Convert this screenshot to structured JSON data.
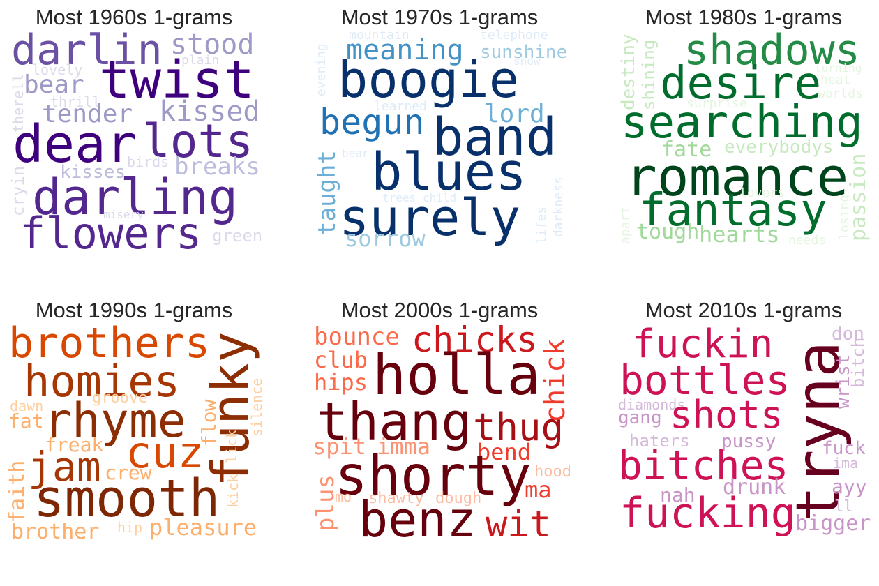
{
  "panels": [
    {
      "title": "Most 1960s 1-grams",
      "words": [
        {
          "text": "darlin",
          "color": "#6a51a3"
        },
        {
          "text": "stood",
          "color": "#9e9ac8"
        },
        {
          "text": "twist",
          "color": "#3f007d"
        },
        {
          "text": "lovely",
          "color": "#dadaeb"
        },
        {
          "text": "plain",
          "color": "#dadaeb"
        },
        {
          "text": "bear",
          "color": "#9e9ac8"
        },
        {
          "text": "thrill",
          "color": "#dadaeb"
        },
        {
          "text": "tender",
          "color": "#9e9ac8"
        },
        {
          "text": "kissed",
          "color": "#9e9ac8"
        },
        {
          "text": "therell",
          "color": "#dadaeb"
        },
        {
          "text": "dear",
          "color": "#3f007d"
        },
        {
          "text": "lots",
          "color": "#54278f"
        },
        {
          "text": "kisses",
          "color": "#bcbddc"
        },
        {
          "text": "birds",
          "color": "#dadaeb"
        },
        {
          "text": "breaks",
          "color": "#bcbddc"
        },
        {
          "text": "cryin",
          "color": "#dadaeb"
        },
        {
          "text": "darling",
          "color": "#54278f"
        },
        {
          "text": "misery",
          "color": "#dadaeb"
        },
        {
          "text": "flowers",
          "color": "#54278f"
        },
        {
          "text": "green",
          "color": "#dadaeb"
        }
      ]
    },
    {
      "title": "Most 1970s 1-grams",
      "words": [
        {
          "text": "mountain",
          "color": "#deebf7"
        },
        {
          "text": "telephone",
          "color": "#deebf7"
        },
        {
          "text": "meaning",
          "color": "#4292c6"
        },
        {
          "text": "sunshine",
          "color": "#9ecae1"
        },
        {
          "text": "snow",
          "color": "#deebf7"
        },
        {
          "text": "evening",
          "color": "#deebf7"
        },
        {
          "text": "boogie",
          "color": "#08306b"
        },
        {
          "text": "learned",
          "color": "#deebf7"
        },
        {
          "text": "begun",
          "color": "#2171b5"
        },
        {
          "text": "lord",
          "color": "#6baed6"
        },
        {
          "text": "band",
          "color": "#08306b"
        },
        {
          "text": "taught",
          "color": "#6baed6"
        },
        {
          "text": "bear",
          "color": "#deebf7"
        },
        {
          "text": "blues",
          "color": "#08306b"
        },
        {
          "text": "darkness",
          "color": "#deebf7"
        },
        {
          "text": "trees",
          "color": "#deebf7"
        },
        {
          "text": "child",
          "color": "#deebf7"
        },
        {
          "text": "lifes",
          "color": "#deebf7"
        },
        {
          "text": "surely",
          "color": "#08306b"
        },
        {
          "text": "sorrow",
          "color": "#9ecae1"
        }
      ]
    },
    {
      "title": "Most 1980s 1-grams",
      "words": [
        {
          "text": "destiny",
          "color": "#c7e9c0"
        },
        {
          "text": "shining",
          "color": "#c7e9c0"
        },
        {
          "text": "shadows",
          "color": "#238b45"
        },
        {
          "text": "desire",
          "color": "#006d2c"
        },
        {
          "text": "turning",
          "color": "#e5f5e0"
        },
        {
          "text": "heat",
          "color": "#e5f5e0"
        },
        {
          "text": "worlds",
          "color": "#e5f5e0"
        },
        {
          "text": "surprise",
          "color": "#e5f5e0"
        },
        {
          "text": "searching",
          "color": "#006d2c"
        },
        {
          "text": "fate",
          "color": "#a1d99b"
        },
        {
          "text": "everybodys",
          "color": "#c7e9c0"
        },
        {
          "text": "romance",
          "color": "#00441b"
        },
        {
          "text": "passion",
          "color": "#c7e9c0"
        },
        {
          "text": "lovers",
          "color": "#e5f5e0"
        },
        {
          "text": "losing",
          "color": "#e5f5e0"
        },
        {
          "text": "fantasy",
          "color": "#006d2c"
        },
        {
          "text": "apart",
          "color": "#e5f5e0"
        },
        {
          "text": "tough",
          "color": "#a1d99b"
        },
        {
          "text": "hearts",
          "color": "#a1d99b"
        },
        {
          "text": "needs",
          "color": "#e5f5e0"
        }
      ]
    },
    {
      "title": "Most 1990s 1-grams",
      "words": [
        {
          "text": "brothers",
          "color": "#d94801"
        },
        {
          "text": "homies",
          "color": "#a63603"
        },
        {
          "text": "funky",
          "color": "#8c2d04"
        },
        {
          "text": "groove",
          "color": "#fdd0a2"
        },
        {
          "text": "dawn",
          "color": "#fdd0a2"
        },
        {
          "text": "silence",
          "color": "#fdd0a2"
        },
        {
          "text": "rhyme",
          "color": "#8c2d04"
        },
        {
          "text": "fat",
          "color": "#fdae6b"
        },
        {
          "text": "flow",
          "color": "#fdae6b"
        },
        {
          "text": "freak",
          "color": "#fdae6b"
        },
        {
          "text": "cuz",
          "color": "#d94801"
        },
        {
          "text": "jam",
          "color": "#a63603"
        },
        {
          "text": "lick",
          "color": "#fdd0a2"
        },
        {
          "text": "faith",
          "color": "#fdae6b"
        },
        {
          "text": "crew",
          "color": "#fdae6b"
        },
        {
          "text": "kick",
          "color": "#fdd0a2"
        },
        {
          "text": "smooth",
          "color": "#7f2704"
        },
        {
          "text": "brother",
          "color": "#fdae6b"
        },
        {
          "text": "hip",
          "color": "#fdd0a2"
        },
        {
          "text": "pleasure",
          "color": "#fdae6b"
        }
      ]
    },
    {
      "title": "Most 2000s 1-grams",
      "words": [
        {
          "text": "bounce",
          "color": "#fb6a4a"
        },
        {
          "text": "chicks",
          "color": "#cb181d"
        },
        {
          "text": "chick",
          "color": "#ef3b2c"
        },
        {
          "text": "club",
          "color": "#fb6a4a"
        },
        {
          "text": "hips",
          "color": "#fb6a4a"
        },
        {
          "text": "holla",
          "color": "#67000d"
        },
        {
          "text": "thang",
          "color": "#67000d"
        },
        {
          "text": "thug",
          "color": "#a50f15"
        },
        {
          "text": "spit",
          "color": "#fc9272"
        },
        {
          "text": "imma",
          "color": "#fc9272"
        },
        {
          "text": "bend",
          "color": "#ef3b2c"
        },
        {
          "text": "shorty",
          "color": "#67000d"
        },
        {
          "text": "plus",
          "color": "#fc9272"
        },
        {
          "text": "hood",
          "color": "#fcbba1"
        },
        {
          "text": "ma",
          "color": "#ef3b2c"
        },
        {
          "text": "mo",
          "color": "#fcbba1"
        },
        {
          "text": "shawty",
          "color": "#fcbba1"
        },
        {
          "text": "dough",
          "color": "#fcbba1"
        },
        {
          "text": "benz",
          "color": "#67000d"
        },
        {
          "text": "wit",
          "color": "#cb181d"
        }
      ]
    },
    {
      "title": "Most 2010s 1-grams",
      "words": [
        {
          "text": "fuckin",
          "color": "#ce1256"
        },
        {
          "text": "tryna",
          "color": "#67001f"
        },
        {
          "text": "don",
          "color": "#d4b9da"
        },
        {
          "text": "bitch",
          "color": "#d4b9da"
        },
        {
          "text": "bottles",
          "color": "#ce1256"
        },
        {
          "text": "wrist",
          "color": "#c994c7"
        },
        {
          "text": "diamonds",
          "color": "#d4b9da"
        },
        {
          "text": "gang",
          "color": "#c994c7"
        },
        {
          "text": "shots",
          "color": "#ce1256"
        },
        {
          "text": "haters",
          "color": "#d4b9da"
        },
        {
          "text": "pussy",
          "color": "#c994c7"
        },
        {
          "text": "fuck",
          "color": "#c994c7"
        },
        {
          "text": "bitches",
          "color": "#ce1256"
        },
        {
          "text": "ima",
          "color": "#d4b9da"
        },
        {
          "text": "nah",
          "color": "#c994c7"
        },
        {
          "text": "drunk",
          "color": "#c994c7"
        },
        {
          "text": "ayy",
          "color": "#c994c7"
        },
        {
          "text": "ll",
          "color": "#d4b9da"
        },
        {
          "text": "fucking",
          "color": "#ce1256"
        },
        {
          "text": "bigger",
          "color": "#c994c7"
        }
      ]
    }
  ]
}
